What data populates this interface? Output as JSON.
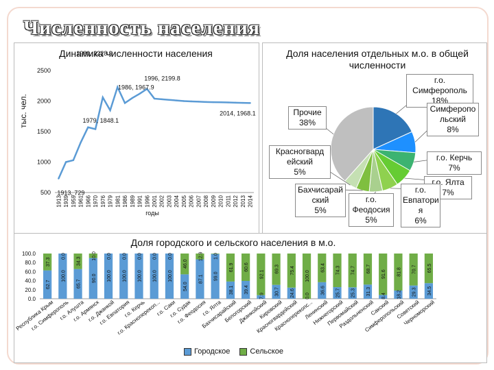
{
  "page": {
    "title": "Численность населения"
  },
  "chart_data": [
    {
      "type": "line",
      "title": "Динамика численности населения",
      "ylabel": "тыс. чел.",
      "xlabel": "годы",
      "ylim": [
        500,
        2500
      ],
      "yticks": [
        500,
        1000,
        1500,
        2000,
        2500
      ],
      "color": "#5b9bd5",
      "x": [
        "1913",
        "1939",
        "1959",
        "1961",
        "1966",
        "1970",
        "1976",
        "1979",
        "1981",
        "1986",
        "1989",
        "1991",
        "1996",
        "2001",
        "2002",
        "2003",
        "2004",
        "2005",
        "2006",
        "2007",
        "2008",
        "2009",
        "2010",
        "2011",
        "2012",
        "2013",
        "2014"
      ],
      "values": [
        729,
        1000,
        1030,
        1320,
        1570,
        1540,
        2060,
        1848,
        2228.9,
        1967.9,
        2050,
        2120,
        2199.8,
        2040,
        2030,
        2020,
        2010,
        2000,
        1995,
        1990,
        1985,
        1982,
        1980,
        1977,
        1974,
        1971,
        1968.1
      ],
      "annotations": [
        {
          "text": "1913, 729",
          "x": "1913"
        },
        {
          "text": "1979, 1848.1",
          "x": "1979"
        },
        {
          "text": "1981, 2228.9",
          "x": "1981"
        },
        {
          "text": "1986, 1967.9",
          "x": "1986"
        },
        {
          "text": "1996, 2199.8",
          "x": "1996"
        },
        {
          "text": "2014, 1968.1",
          "x": "2014"
        }
      ]
    },
    {
      "type": "pie",
      "title": "Доля населения отдельных м.о. в общей численности",
      "slices": [
        {
          "label": "г.о. Симферополь 18%",
          "lines": [
            "г.о.",
            "Симферополь",
            "18%"
          ],
          "value": 18,
          "color": "#2e75b6"
        },
        {
          "label": "Симферопольский 8%",
          "lines": [
            "Симферопо",
            "льский",
            "8%"
          ],
          "value": 8,
          "color": "#1e90ff"
        },
        {
          "label": "г.о. Керчь 7%",
          "lines": [
            "г.о. Керчь",
            "7%"
          ],
          "value": 7,
          "color": "#3cb371"
        },
        {
          "label": "г.о. Ялта 7%",
          "lines": [
            "г.о. Ялта",
            "7%"
          ],
          "value": 7,
          "color": "#66cc33"
        },
        {
          "label": "г.о. Евпатория 6%",
          "lines": [
            "г.о.",
            "Евпатори",
            "я",
            "6%"
          ],
          "value": 6,
          "color": "#8fd14f"
        },
        {
          "label": "г.о. Феодосия 5%",
          "lines": [
            "г.о.",
            "Феодосия",
            "5%"
          ],
          "value": 5,
          "color": "#a9d08e"
        },
        {
          "label": "Бахчисарайский 5%",
          "lines": [
            "Бахчисарай",
            "ский",
            "5%"
          ],
          "value": 5,
          "color": "#7fbf3f"
        },
        {
          "label": "Красногвардейский 5%",
          "lines": [
            "Красногвард",
            "ейский",
            "5%"
          ],
          "value": 5,
          "color": "#c5e0b3"
        },
        {
          "label": "Прочие 38%",
          "lines": [
            "Прочие",
            "38%"
          ],
          "value": 38,
          "color": "#bfbfbf"
        }
      ]
    },
    {
      "type": "bar",
      "stacked": true,
      "title": "Доля городского и сельского населения в м.о.",
      "ylim": [
        0,
        100
      ],
      "yticks": [
        "0.0",
        "20.0",
        "40.0",
        "60.0",
        "80.0",
        "100.0"
      ],
      "categories": [
        "Республика Крым",
        "г.о. Симферополь",
        "г.о. Алушта",
        "г.о. Армянск",
        "г.о. Джанкой",
        "г.о. Евпатория",
        "г.о. Керчь",
        "г.о. Красноперекоп...",
        "г.о. Саки",
        "г.о. Судак",
        "г.о. Феодосия",
        "г.о. Ялта",
        "Бахчисарайский",
        "Белогорский",
        "Джанкойский",
        "Кировский",
        "Красногвардейский",
        "Красноперекопс...",
        "Ленинский",
        "Нижнегорский",
        "Первомайский",
        "Раздольненский",
        "Сакский",
        "Симферопольский",
        "Советский",
        "Черноморский"
      ],
      "series": [
        {
          "name": "Городское",
          "color": "#5b9bd5",
          "values": [
            62.7,
            100.0,
            65.7,
            90.0,
            100.0,
            100.0,
            100.0,
            100.0,
            100.0,
            54.0,
            87.1,
            99.0,
            38.1,
            39.4,
            7.9,
            30.7,
            24.6,
            0.0,
            36.6,
            25.7,
            25.3,
            31.3,
            8.4,
            18.2,
            29.3,
            34.5
          ],
          "labels": [
            "62.7",
            "100.0",
            "65.7",
            "90.0",
            "100.0",
            "100.0",
            "100.0",
            "100.0",
            "100.0",
            "54.0",
            "87.1",
            "99.0",
            "38.1",
            "39.4",
            "7.9",
            "30.7",
            "24.6",
            "0.0",
            "36.6",
            "25.7",
            "25.3",
            "31.3",
            "8.4",
            "18.2",
            "29.3",
            "34.5"
          ]
        },
        {
          "name": "Сельское",
          "color": "#70ad47",
          "values": [
            37.3,
            0.0,
            34.3,
            10.0,
            0.0,
            0.0,
            0.0,
            0.0,
            0.0,
            46.0,
            12.9,
            1.0,
            61.9,
            60.6,
            92.1,
            69.3,
            75.4,
            100.0,
            63.4,
            74.3,
            74.7,
            68.7,
            91.6,
            81.8,
            70.7,
            65.5
          ],
          "labels": [
            "37.3",
            "0.0",
            "34.3",
            "10.0",
            "0.0",
            "0.0",
            "0.0",
            "0.0",
            "0.0",
            "46.0",
            "12.9",
            "1.0",
            "61.9",
            "60.6",
            "92.1",
            "69.3",
            "75.4",
            "100.0",
            "63.4",
            "74.3",
            "74.7",
            "68.7",
            "91.6",
            "81.8",
            "70.7",
            "65.5"
          ]
        }
      ],
      "legend": [
        "Городское",
        "Сельское"
      ]
    }
  ]
}
